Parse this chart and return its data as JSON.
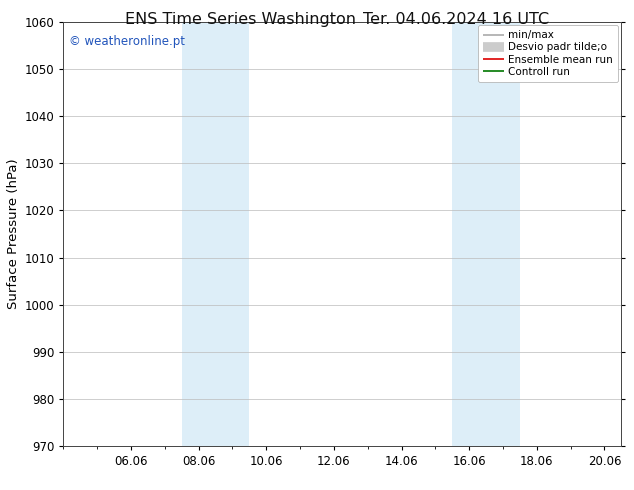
{
  "title_left": "ENS Time Series Washington",
  "title_right": "Ter. 04.06.2024 16 UTC",
  "ylabel": "Surface Pressure (hPa)",
  "ylim": [
    970,
    1060
  ],
  "yticks": [
    970,
    980,
    990,
    1000,
    1010,
    1020,
    1030,
    1040,
    1050,
    1060
  ],
  "xlim": [
    0,
    16.5
  ],
  "xtick_labels": [
    "06.06",
    "08.06",
    "10.06",
    "12.06",
    "14.06",
    "16.06",
    "18.06",
    "20.06"
  ],
  "xtick_positions": [
    2,
    4,
    6,
    8,
    10,
    12,
    14,
    16
  ],
  "shaded_regions": [
    {
      "x_start": 3.5,
      "x_end": 5.5,
      "color": "#ddeef8"
    },
    {
      "x_start": 11.5,
      "x_end": 13.5,
      "color": "#ddeef8"
    }
  ],
  "watermark": "© weatheronline.pt",
  "watermark_color": "#2255bb",
  "legend_entries": [
    {
      "label": "min/max",
      "color": "#aaaaaa",
      "linewidth": 1.2
    },
    {
      "label": "Desvio padr tilde;o",
      "color": "#cccccc",
      "linewidth": 7
    },
    {
      "label": "Ensemble mean run",
      "color": "#dd0000",
      "linewidth": 1.2
    },
    {
      "label": "Controll run",
      "color": "#007700",
      "linewidth": 1.2
    }
  ],
  "background_color": "#ffffff",
  "grid_color": "#bbbbbb",
  "title_fontsize": 11.5,
  "tick_fontsize": 8.5,
  "ylabel_fontsize": 9.5,
  "watermark_fontsize": 8.5,
  "legend_fontsize": 7.5
}
